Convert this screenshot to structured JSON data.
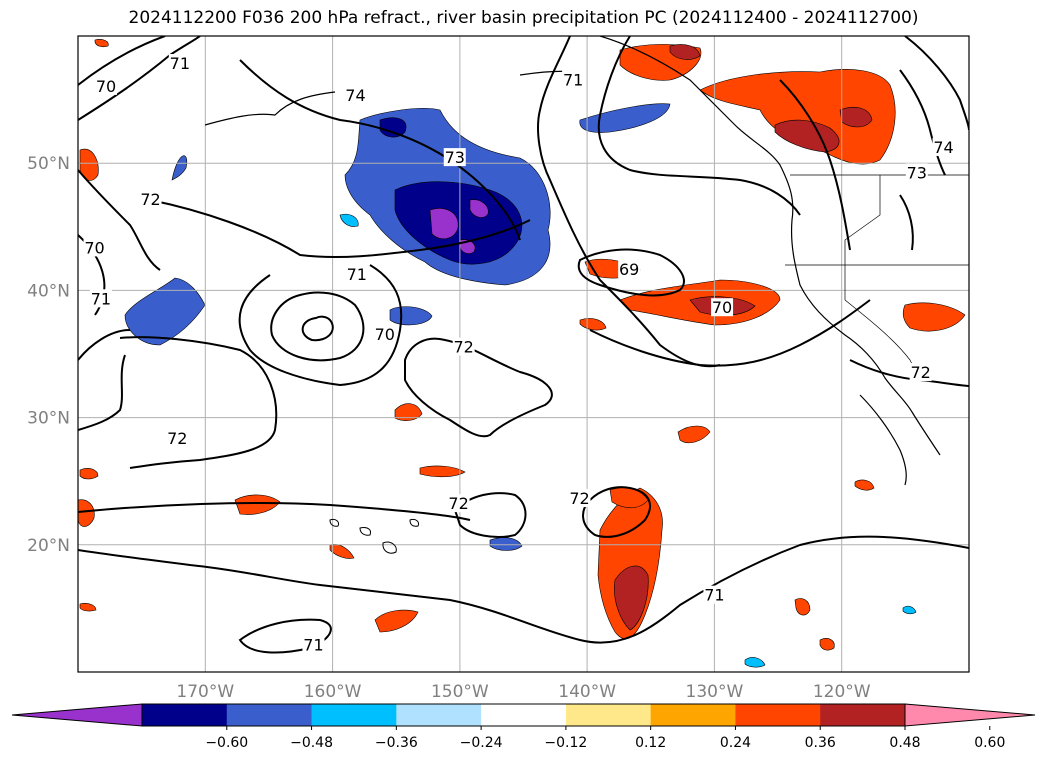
{
  "title": "2024112200 F036 200 hPa refract., river basin precipitation PC (2024112400 - 2024112700)",
  "map": {
    "projection": "PlateCarree",
    "extent": {
      "lon_min": -180,
      "lon_max": -110,
      "lat_min": 10,
      "lat_max": 60
    },
    "gridlines": true,
    "lat_ticks": [
      {
        "value": 20,
        "label": "20°N"
      },
      {
        "value": 30,
        "label": "30°N"
      },
      {
        "value": 40,
        "label": "40°N"
      },
      {
        "value": 50,
        "label": "50°N"
      }
    ],
    "lon_ticks": [
      {
        "value": -170,
        "label": "170°W"
      },
      {
        "value": -160,
        "label": "160°W"
      },
      {
        "value": -150,
        "label": "150°W"
      },
      {
        "value": -140,
        "label": "140°W"
      },
      {
        "value": -130,
        "label": "130°W"
      },
      {
        "value": -120,
        "label": "120°W"
      }
    ],
    "contour_labels": [
      {
        "text": "71",
        "lon": -172,
        "lat": 57.8
      },
      {
        "text": "70",
        "lon": -177.8,
        "lat": 56
      },
      {
        "text": "74",
        "lon": -158.2,
        "lat": 55.3
      },
      {
        "text": "73",
        "lon": -150.4,
        "lat": 50.4
      },
      {
        "text": "71",
        "lon": -141.1,
        "lat": 56.5
      },
      {
        "text": "72",
        "lon": -174.3,
        "lat": 47.1
      },
      {
        "text": "70",
        "lon": -178.7,
        "lat": 43.3
      },
      {
        "text": "71",
        "lon": -178.2,
        "lat": 39.3
      },
      {
        "text": "71",
        "lon": -158.1,
        "lat": 41.2
      },
      {
        "text": "70",
        "lon": -155.9,
        "lat": 36.5
      },
      {
        "text": "72",
        "lon": -149.7,
        "lat": 35.5
      },
      {
        "text": "69",
        "lon": -136.7,
        "lat": 41.6
      },
      {
        "text": "70",
        "lon": -129.4,
        "lat": 38.6
      },
      {
        "text": "74",
        "lon": -112,
        "lat": 51.2
      },
      {
        "text": "73",
        "lon": -114.1,
        "lat": 49.2
      },
      {
        "text": "72",
        "lon": -113.8,
        "lat": 33.5
      },
      {
        "text": "72",
        "lon": -172.2,
        "lat": 28.3
      },
      {
        "text": "72",
        "lon": -150.1,
        "lat": 23.2
      },
      {
        "text": "72",
        "lon": -140.6,
        "lat": 23.6
      },
      {
        "text": "71",
        "lon": -130,
        "lat": 16
      },
      {
        "text": "71",
        "lon": -161.5,
        "lat": 12.1
      }
    ]
  },
  "colorbar": {
    "levels": [
      -0.6,
      -0.48,
      -0.36,
      -0.24,
      -0.12,
      0.12,
      0.24,
      0.36,
      0.48,
      0.6
    ],
    "tick_labels": [
      "−0.60",
      "−0.48",
      "−0.36",
      "−0.24",
      "−0.12",
      "0.12",
      "0.24",
      "0.36",
      "0.48",
      "0.60"
    ],
    "colors": [
      "#9932cc",
      "#00008b",
      "#3a5fcd",
      "#00bfff",
      "#b0e2ff",
      "#ffffff",
      "#ffe88a",
      "#ffa500",
      "#ff4500",
      "#b22222",
      "#ff89ac"
    ],
    "extend": "both"
  }
}
